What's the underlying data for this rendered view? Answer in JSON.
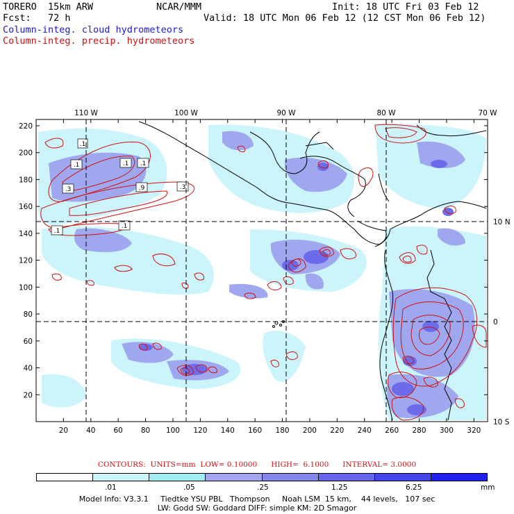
{
  "header": {
    "model": "TORERO  15km ARW",
    "forecast": "Fcst:   72 h",
    "org": "NCAR/MMM",
    "init": "Init: 18 UTC Fri 03 Feb 12",
    "valid": "Valid: 18 UTC Mon 06 Feb 12 (12 CST Mon 06 Feb 12)",
    "field_cloud": "Column-integ. cloud hydrometeors",
    "field_precip": "Column-integ. precip. hydrometeors"
  },
  "colors": {
    "cloud_light": "#ccf4fb",
    "cloud_mid": "#9fa8ee",
    "cloud_dark": "#6c6cea",
    "precip_contour": "#d01010",
    "lat_lon_lines": "#000000"
  },
  "axes": {
    "top_lon_labels": [
      "110 W",
      "100 W",
      "90 W",
      "80 W",
      "70 W"
    ],
    "right_lat_labels": [
      "10 N",
      "0",
      "10 S"
    ],
    "y_ticks": [
      "220",
      "200",
      "180",
      "160",
      "140",
      "120",
      "100",
      "80",
      "60",
      "40",
      "20"
    ],
    "x_ticks": [
      "20",
      "40",
      "60",
      "80",
      "100",
      "120",
      "140",
      "160",
      "180",
      "200",
      "220",
      "240",
      "260",
      "280",
      "300",
      "320"
    ]
  },
  "contour_labels": [
    ".1",
    ".1",
    ".1",
    ".1",
    ".3",
    ".9",
    ".3",
    ".1",
    ".1"
  ],
  "contours_info": {
    "title": "CONTOURS:  UNITS=mm  LOW= 0.10000      HIGH=  6.1000      INTERVAL= 3.0000"
  },
  "scale": {
    "labels": [
      ".01",
      ".05",
      ".25",
      "1.25",
      "6.25"
    ],
    "unit": "mm",
    "colors": [
      "#ffffff",
      "#ccf4fb",
      "#a4ecf4",
      "#a3a6ee",
      "#8585ee",
      "#6565ee",
      "#4545f0",
      "#2020ee"
    ]
  },
  "footer": {
    "line1": "Model Info: V3.3.1     Tiedtke YSU PBL   Thompson     Noah LSM  15 km,    44 levels,   107 sec",
    "line2": "LW: Godd SW: Goddard DIFF: simple KM: 2D Smagor"
  }
}
